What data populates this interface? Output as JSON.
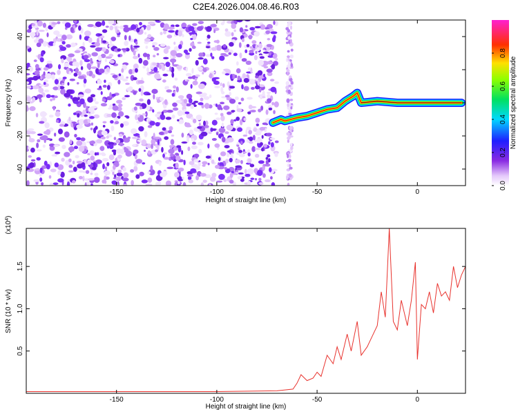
{
  "title": "C2E4.2026.004.08.46.R03",
  "colors": {
    "snr_line": "#e8312c",
    "background": "#ffffff",
    "axis": "#000000",
    "spectrogram_noise": "#7b2ff7"
  },
  "chart_data": [
    {
      "type": "heatmap",
      "xlabel": "Height of straight line (km)",
      "ylabel": "Frequency (Hz)",
      "xlim": [
        -195,
        24
      ],
      "ylim": [
        -50,
        50
      ],
      "x_ticks": [
        -150,
        -100,
        -50,
        0
      ],
      "x_tick_labels": [
        "-150",
        "-100",
        "-50",
        "0"
      ],
      "y_ticks": [
        -40,
        -20,
        0,
        20,
        40
      ],
      "y_tick_labels": [
        "-40",
        "-20",
        "0",
        "20",
        "40"
      ],
      "colorbar": {
        "label": "Normalized spectral amplitude",
        "range": [
          0,
          1
        ],
        "ticks": [
          0.0,
          0.2,
          0.4,
          0.6,
          0.8
        ],
        "tick_labels": [
          "0.0",
          "0.2",
          "0.4",
          "0.6",
          "0.8"
        ],
        "colormap": "rainbow (white-violet-blue-cyan-green-yellow-red-magenta)"
      },
      "description_values": {
        "noise_region_x": [
          -195,
          -70
        ],
        "signal_trace": [
          {
            "x": -72,
            "y": -12
          },
          {
            "x": -70,
            "y": -11
          },
          {
            "x": -68,
            "y": -10
          },
          {
            "x": -66,
            "y": -11
          },
          {
            "x": -60,
            "y": -9
          },
          {
            "x": -55,
            "y": -8
          },
          {
            "x": -50,
            "y": -6
          },
          {
            "x": -45,
            "y": -4
          },
          {
            "x": -40,
            "y": -3
          },
          {
            "x": -36,
            "y": 1
          },
          {
            "x": -32,
            "y": 4
          },
          {
            "x": -30,
            "y": 6
          },
          {
            "x": -28,
            "y": 0
          },
          {
            "x": -20,
            "y": 1
          },
          {
            "x": -10,
            "y": 0
          },
          {
            "x": 0,
            "y": 0
          },
          {
            "x": 10,
            "y": 0
          },
          {
            "x": 22,
            "y": 0
          }
        ]
      }
    },
    {
      "type": "line",
      "xlabel": "Height of straight line (km)",
      "ylabel": "SNR (10 * v/v)",
      "y_multiplier_label": "(x10^4)",
      "xlim": [
        -195,
        24
      ],
      "ylim": [
        0,
        1.95
      ],
      "x_ticks": [
        -150,
        -100,
        -50,
        0
      ],
      "x_tick_labels": [
        "-150",
        "-100",
        "-50",
        "0"
      ],
      "y_ticks": [
        0.5,
        1.0,
        1.5
      ],
      "y_tick_labels": [
        "0.5",
        "1.0",
        "1.5"
      ],
      "series": [
        {
          "x": [
            -195,
            -150,
            -100,
            -70,
            -62,
            -60,
            -58,
            -55,
            -52,
            -50,
            -48,
            -45,
            -42,
            -40,
            -38,
            -35,
            -33,
            -30,
            -28,
            -25,
            -22,
            -20,
            -18,
            -16,
            -14,
            -12,
            -10,
            -8,
            -5,
            -3,
            -1,
            0,
            2,
            4,
            6,
            8,
            10,
            12,
            14,
            16,
            18,
            20,
            22,
            24
          ],
          "y": [
            0.02,
            0.02,
            0.02,
            0.03,
            0.05,
            0.12,
            0.22,
            0.15,
            0.18,
            0.25,
            0.2,
            0.45,
            0.35,
            0.55,
            0.4,
            0.7,
            0.5,
            0.85,
            0.45,
            0.55,
            0.7,
            0.8,
            1.2,
            0.9,
            1.95,
            0.85,
            0.75,
            1.1,
            0.8,
            1.1,
            1.55,
            0.4,
            1.05,
            1.0,
            1.2,
            0.95,
            1.3,
            1.15,
            1.2,
            1.1,
            1.5,
            1.25,
            1.4,
            1.5
          ]
        }
      ]
    }
  ]
}
